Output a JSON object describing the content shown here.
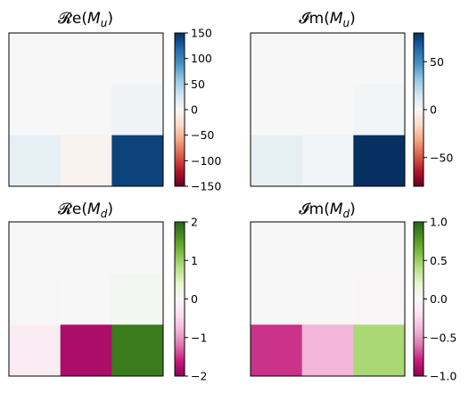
{
  "chart_data": [
    {
      "type": "heatmap",
      "title": {
        "prefix": "𝓡e(",
        "var": "M",
        "sub": "u",
        "suffix": ")"
      },
      "colormap": "RdBu",
      "colorbar": {
        "range": [
          -150,
          150
        ],
        "ticks": [
          150,
          100,
          50,
          0,
          -50,
          -100,
          -150
        ],
        "tick_labels": [
          "150",
          "100",
          "50",
          "0",
          "−50",
          "−100",
          "−150"
        ]
      },
      "rows": 3,
      "cols": 3,
      "values": [
        [
          0,
          0,
          0
        ],
        [
          0,
          0,
          6
        ],
        [
          14,
          -6,
          140
        ]
      ]
    },
    {
      "type": "heatmap",
      "title": {
        "prefix": "𝓘m(",
        "var": "M",
        "sub": "u",
        "suffix": ")"
      },
      "colormap": "RdBu",
      "colorbar": {
        "range": [
          -80,
          80
        ],
        "ticks": [
          50,
          0,
          -50
        ],
        "tick_labels": [
          "50",
          "0",
          "−50"
        ]
      },
      "rows": 3,
      "cols": 3,
      "values": [
        [
          0,
          0,
          0
        ],
        [
          0,
          0,
          2
        ],
        [
          7,
          3,
          80
        ]
      ]
    },
    {
      "type": "heatmap",
      "title": {
        "prefix": "𝓡e(",
        "var": "M",
        "sub": "d",
        "suffix": ")"
      },
      "colormap": "PiYG",
      "colorbar": {
        "range": [
          -2,
          2
        ],
        "ticks": [
          2,
          1,
          0,
          -1,
          -2
        ],
        "tick_labels": [
          "2",
          "1",
          "0",
          "−1",
          "−2"
        ]
      },
      "rows": 3,
      "cols": 3,
      "values": [
        [
          0,
          0,
          0
        ],
        [
          -0.02,
          0,
          0.06
        ],
        [
          -0.2,
          -1.8,
          1.8
        ]
      ]
    },
    {
      "type": "heatmap",
      "title": {
        "prefix": "𝓘m(",
        "var": "M",
        "sub": "d",
        "suffix": ")"
      },
      "colormap": "PiYG",
      "colorbar": {
        "range": [
          -1,
          1
        ],
        "ticks": [
          1.0,
          0.5,
          0.0,
          -0.5,
          -1.0
        ],
        "tick_labels": [
          "1.0",
          "0.5",
          "0.0",
          "−0.5",
          "−1.0"
        ]
      },
      "rows": 3,
      "cols": 3,
      "values": [
        [
          0,
          0,
          0
        ],
        [
          0,
          0,
          -0.02
        ],
        [
          -0.75,
          -0.4,
          0.45
        ]
      ]
    }
  ]
}
